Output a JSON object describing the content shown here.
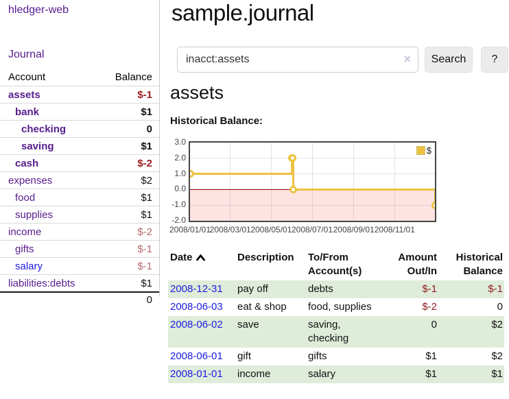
{
  "sidebar": {
    "brand": "hledger-web",
    "nav": [
      {
        "label": "Journal"
      }
    ],
    "accounts_table": {
      "col_account": "Account",
      "col_balance": "Balance",
      "rows": [
        {
          "account": "assets",
          "indent": 1,
          "bold": true,
          "link_color": "purple",
          "balance": "$-1",
          "balance_style": "neg-bold"
        },
        {
          "account": "bank",
          "indent": 2,
          "bold": true,
          "link_color": "purple",
          "balance": "$1",
          "balance_style": "pos-bold"
        },
        {
          "account": "checking",
          "indent": 3,
          "bold": true,
          "link_color": "purple",
          "balance": "0",
          "balance_style": "pos-bold"
        },
        {
          "account": "saving",
          "indent": 3,
          "bold": true,
          "link_color": "purple",
          "balance": "$1",
          "balance_style": "pos-bold"
        },
        {
          "account": "cash",
          "indent": 2,
          "bold": true,
          "link_color": "purple",
          "balance": "$-2",
          "balance_style": "neg-bold"
        },
        {
          "account": "expenses",
          "indent": 1,
          "bold": false,
          "link_color": "purple",
          "balance": "$2",
          "balance_style": "pos"
        },
        {
          "account": "food",
          "indent": 2,
          "bold": false,
          "link_color": "purple",
          "balance": "$1",
          "balance_style": "pos"
        },
        {
          "account": "supplies",
          "indent": 2,
          "bold": false,
          "link_color": "purple",
          "balance": "$1",
          "balance_style": "pos"
        },
        {
          "account": "income",
          "indent": 1,
          "bold": false,
          "link_color": "purple",
          "balance": "$-2",
          "balance_style": "neg-muted"
        },
        {
          "account": "gifts",
          "indent": 2,
          "bold": false,
          "link_color": "purple",
          "balance": "$-1",
          "balance_style": "neg-muted"
        },
        {
          "account": "salary",
          "indent": 2,
          "bold": false,
          "link_color": "blue",
          "balance": "$-1",
          "balance_style": "neg-muted"
        },
        {
          "account": "liabilities:debts",
          "indent": 1,
          "bold": false,
          "link_color": "purple",
          "balance": "$1",
          "balance_style": "pos"
        }
      ],
      "total": "0"
    }
  },
  "header": {
    "title": "sample.journal"
  },
  "search": {
    "value": "inacct:assets",
    "clear_icon": "×",
    "button": "Search",
    "help_button": "?"
  },
  "account_page": {
    "heading": "assets",
    "chart_label": "Historical Balance:"
  },
  "chart_data": {
    "type": "line",
    "line_style": "step",
    "title": "Historical Balance",
    "series": [
      {
        "name": "$",
        "color": "#edc240",
        "points": [
          [
            "2008-01-01",
            1
          ],
          [
            "2008-06-01",
            2
          ],
          [
            "2008-06-02",
            2
          ],
          [
            "2008-06-03",
            0
          ],
          [
            "2008-12-31",
            -1
          ]
        ]
      }
    ],
    "xlim": [
      "2008-01-01",
      "2008-12-31"
    ],
    "ylim": [
      -2,
      3
    ],
    "x_tick_dates": [
      "2008-01-01",
      "2008-03-01",
      "2008-05-01",
      "2008-07-01",
      "2008-09-01",
      "2008-11-01"
    ],
    "x_tick_labels": [
      "2008/01/01",
      "2008/03/01",
      "2008/05/01",
      "2008/07/01",
      "2008/09/01",
      "2008/11/01"
    ],
    "y_ticks": [
      "3.0",
      "2.0",
      "1.0",
      "0.0",
      "-1.0",
      "-2.0"
    ],
    "legend": {
      "label": "$",
      "position": "top-right"
    },
    "grid": true,
    "zero_line_color": "#8b0000",
    "negative_region_color": "rgba(255,70,70,0.15)",
    "series_color": "#edc240"
  },
  "register_table": {
    "columns": [
      {
        "label": "Date",
        "sortable": true,
        "align": "left"
      },
      {
        "label": "Description",
        "align": "left"
      },
      {
        "label": "To/From Account(s)",
        "align": "left"
      },
      {
        "label": "Amount Out/In",
        "align": "right"
      },
      {
        "label": "Historical Balance",
        "align": "right"
      }
    ],
    "rows": [
      {
        "date": "2008-12-31",
        "description": "pay off",
        "accounts": "debts",
        "amount": "$-1",
        "balance": "$-1"
      },
      {
        "date": "2008-06-03",
        "description": "eat & shop",
        "accounts": "food, supplies",
        "amount": "$-2",
        "balance": "0"
      },
      {
        "date": "2008-06-02",
        "description": "save",
        "accounts": "saving, checking",
        "amount": "0",
        "balance": "$2"
      },
      {
        "date": "2008-06-01",
        "description": "gift",
        "accounts": "gifts",
        "amount": "$1",
        "balance": "$2"
      },
      {
        "date": "2008-01-01",
        "description": "income",
        "accounts": "salary",
        "amount": "$1",
        "balance": "$1"
      }
    ]
  },
  "colors": {
    "link_purple": "#561b8d",
    "link_blue": "#1b1be0",
    "negative_bold": "#9e1b20",
    "negative_muted": "#b4686c",
    "negative_table": "#8f1d21",
    "row_green": "#dfecda",
    "chart_gold": "#edc240",
    "zero_line": "#8b0000"
  }
}
